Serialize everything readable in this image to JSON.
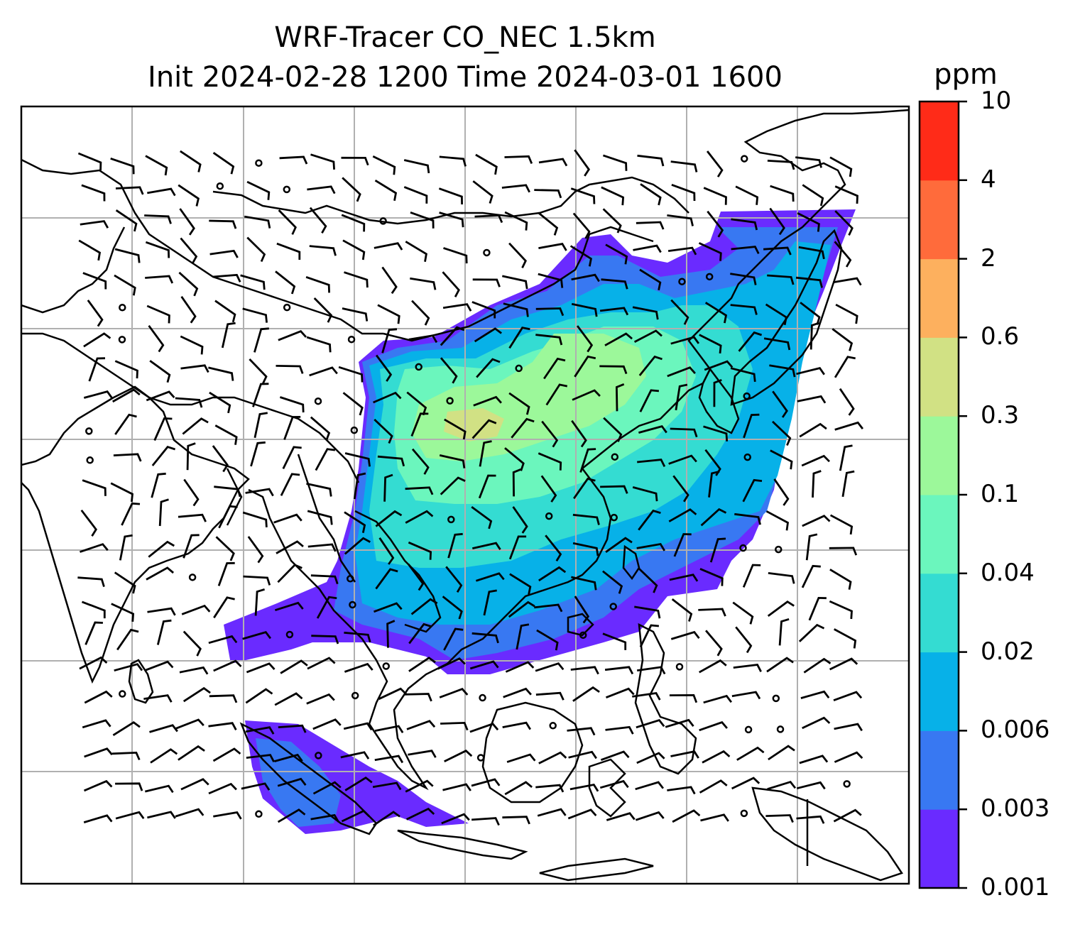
{
  "chart_data": {
    "type": "heatmap",
    "title": "WRF-Tracer CO_NEC 1.5km",
    "subtitle": "Init 2024-02-28 1200 Time 2024-03-01 1600",
    "colorbar": {
      "unit": "ppm",
      "levels": [
        "0.001",
        "0.003",
        "0.006",
        "0.02",
        "0.04",
        "0.1",
        "0.3",
        "0.6",
        "2",
        "4",
        "10"
      ],
      "colors": [
        "#6a2bff",
        "#3878f2",
        "#07b1e8",
        "#34dcd2",
        "#6bf6bd",
        "#9cf89a",
        "#d1e184",
        "#fdb05e",
        "#ff6b3b",
        "#ff2b18"
      ]
    },
    "grid": true,
    "overlays": [
      "coastlines",
      "country borders",
      "wind barbs"
    ]
  }
}
